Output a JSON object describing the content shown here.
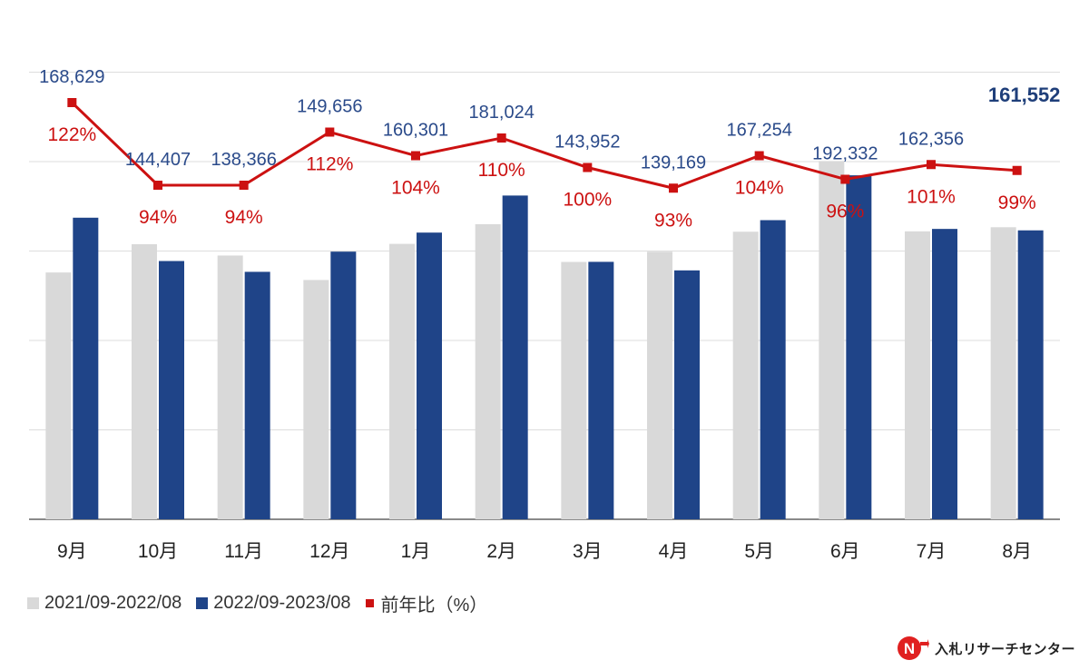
{
  "chart_data": {
    "type": "bar+line",
    "categories": [
      "9月",
      "10月",
      "11月",
      "12月",
      "1月",
      "2月",
      "3月",
      "4月",
      "5月",
      "6月",
      "7月",
      "8月"
    ],
    "series": [
      {
        "name": "2021/09-2022/08",
        "type": "bar",
        "color": "#d9d9d9",
        "values": [
          138000,
          153800,
          147500,
          133800,
          154000,
          165000,
          143900,
          149600,
          160800,
          200300,
          161000,
          163300
        ]
      },
      {
        "name": "2022/09-2023/08",
        "type": "bar",
        "color": "#1f4488",
        "values": [
          168629,
          144407,
          138366,
          149656,
          160301,
          181024,
          143952,
          139169,
          167254,
          192332,
          162356,
          161552
        ]
      },
      {
        "name": "前年比（%）",
        "type": "line",
        "color": "#cc1111",
        "values": [
          122,
          94,
          94,
          112,
          104,
          110,
          100,
          93,
          104,
          96,
          101,
          99
        ]
      }
    ],
    "value_labels": [
      "168,629",
      "144,407",
      "138,366",
      "149,656",
      "160,301",
      "181,024",
      "143,952",
      "139,169",
      "167,254",
      "192,332",
      "162,356",
      "161,552"
    ],
    "pct_labels": [
      "122%",
      "94%",
      "94%",
      "112%",
      "104%",
      "110%",
      "100%",
      "93%",
      "104%",
      "96%",
      "101%",
      "99%"
    ],
    "bar_ylim": [
      0,
      250000
    ],
    "grid": true,
    "legend_position": "bottom-left"
  },
  "legend": {
    "items": [
      {
        "label": "2021/09-2022/08",
        "color": "#d9d9d9"
      },
      {
        "label": "2022/09-2023/08",
        "color": "#1f4488"
      },
      {
        "label": "前年比（%）",
        "color": "#cc1111"
      }
    ]
  },
  "brand": {
    "name": "入札リサーチセンター",
    "logo_letter": "N"
  }
}
